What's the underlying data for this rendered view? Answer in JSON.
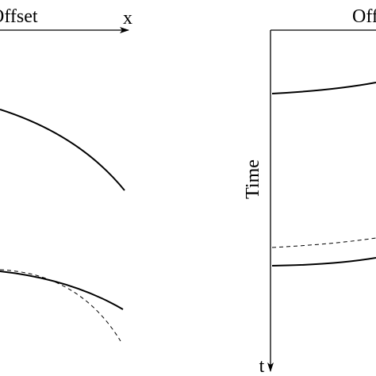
{
  "left_panel": {
    "axis_label": "Offset",
    "axis_symbol": "x"
  },
  "right_panel": {
    "axis_label": "Offset",
    "vertical_label": "Time",
    "axis_symbol": "t"
  }
}
